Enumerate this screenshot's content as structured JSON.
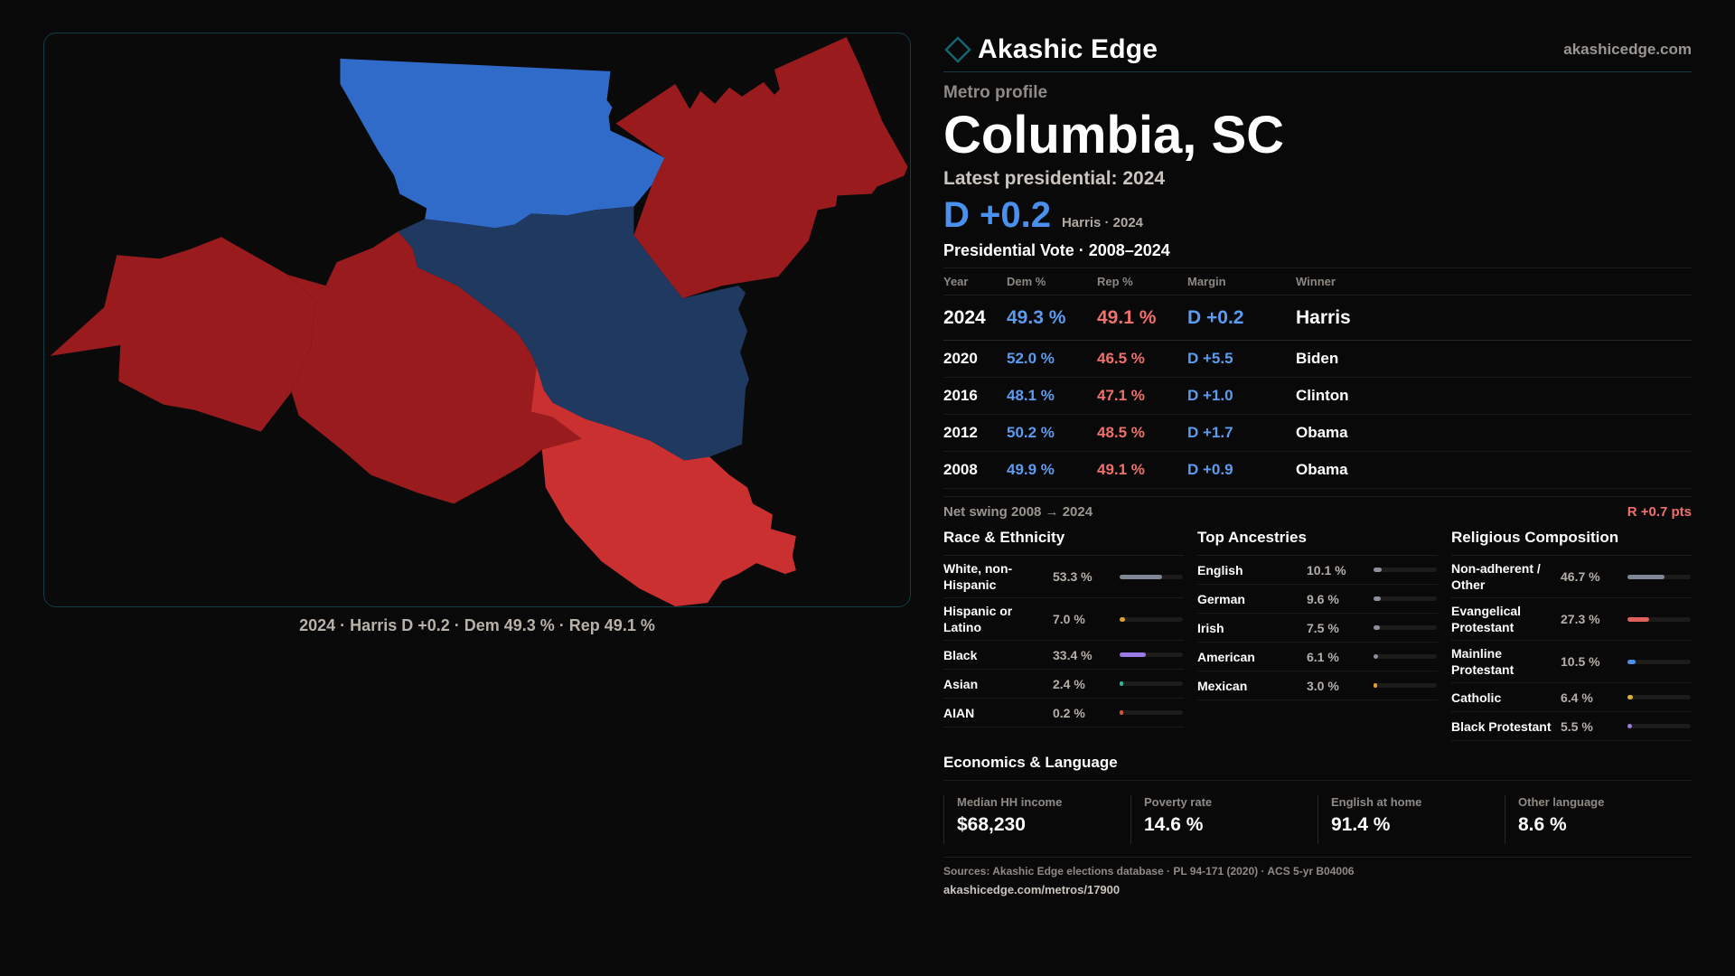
{
  "map": {
    "caption": "2024 · Harris D +0.2 · Dem 49.3 % · Rep 49.1 %",
    "colors": {
      "strong_dem": "#316bc9",
      "lean_dem": "#1f3961",
      "strong_rep": "#991b1e",
      "lean_rep": "#cb3030"
    }
  },
  "brand": {
    "name": "Akashic Edge",
    "url": "akashicedge.com",
    "icon": "diamond-icon",
    "accent": "#15646e"
  },
  "profile": {
    "eyebrow": "Metro profile",
    "title": "Columbia, SC",
    "latest_label": "Latest presidential: 2024",
    "margin": "D +0.2",
    "margin_note": "Harris · 2024"
  },
  "votes": {
    "title": "Presidential Vote · 2008–2024",
    "columns": [
      "Year",
      "Dem %",
      "Rep %",
      "Margin",
      "Winner"
    ],
    "rows": [
      {
        "year": "2024",
        "dem": "49.3 %",
        "rep": "49.1 %",
        "margin": "D +0.2",
        "winner": "Harris"
      },
      {
        "year": "2020",
        "dem": "52.0 %",
        "rep": "46.5 %",
        "margin": "D +5.5",
        "winner": "Biden"
      },
      {
        "year": "2016",
        "dem": "48.1 %",
        "rep": "47.1 %",
        "margin": "D +1.0",
        "winner": "Clinton"
      },
      {
        "year": "2012",
        "dem": "50.2 %",
        "rep": "48.5 %",
        "margin": "D +1.7",
        "winner": "Obama"
      },
      {
        "year": "2008",
        "dem": "49.9 %",
        "rep": "49.1 %",
        "margin": "D +0.9",
        "winner": "Obama"
      }
    ],
    "swing_label": "Net swing 2008 → 2024",
    "swing_value": "R +0.7 pts"
  },
  "race": {
    "title": "Race & Ethnicity",
    "items": [
      {
        "label": "White, non-Hispanic",
        "value": "53.3 %",
        "pct": 53.3,
        "color": "#7f8797"
      },
      {
        "label": "Hispanic or Latino",
        "value": "7.0 %",
        "pct": 7.0,
        "color": "#e0a030"
      },
      {
        "label": "Black",
        "value": "33.4 %",
        "pct": 33.4,
        "color": "#9b7ae6"
      },
      {
        "label": "Asian",
        "value": "2.4 %",
        "pct": 2.4,
        "color": "#2fb59a"
      },
      {
        "label": "AIAN",
        "value": "0.2 %",
        "pct": 0.2,
        "color": "#d0583a"
      }
    ]
  },
  "ancestry": {
    "title": "Top Ancestries",
    "items": [
      {
        "label": "English",
        "value": "10.1 %",
        "pct": 10.1,
        "color": "#8a8f98"
      },
      {
        "label": "German",
        "value": "9.6 %",
        "pct": 9.6,
        "color": "#8a8f98"
      },
      {
        "label": "Irish",
        "value": "7.5 %",
        "pct": 7.5,
        "color": "#8a8f98"
      },
      {
        "label": "American",
        "value": "6.1 %",
        "pct": 6.1,
        "color": "#8a8f98"
      },
      {
        "label": "Mexican",
        "value": "3.0 %",
        "pct": 3.0,
        "color": "#e0a030"
      }
    ]
  },
  "religion": {
    "title": "Religious Composition",
    "items": [
      {
        "label": "Non-adherent / Other",
        "value": "46.7 %",
        "pct": 46.7,
        "color": "#7f8797"
      },
      {
        "label": "Evangelical Protestant",
        "value": "27.3 %",
        "pct": 27.3,
        "color": "#e0605a"
      },
      {
        "label": "Mainline Protestant",
        "value": "10.5 %",
        "pct": 10.5,
        "color": "#4a90ee"
      },
      {
        "label": "Catholic",
        "value": "6.4 %",
        "pct": 6.4,
        "color": "#e0b030"
      },
      {
        "label": "Black Protestant",
        "value": "5.5 %",
        "pct": 5.5,
        "color": "#9b7ae6"
      }
    ]
  },
  "economics": {
    "title": "Economics & Language",
    "cards": [
      {
        "label": "Median HH income",
        "value": "$68,230"
      },
      {
        "label": "Poverty rate",
        "value": "14.6 %"
      },
      {
        "label": "English at home",
        "value": "91.4 %"
      },
      {
        "label": "Other language",
        "value": "8.6 %"
      }
    ]
  },
  "sources": {
    "text": "Sources: Akashic Edge elections database · PL 94-171 (2020) · ACS 5-yr B04006",
    "url": "akashicedge.com/metros/17900"
  }
}
